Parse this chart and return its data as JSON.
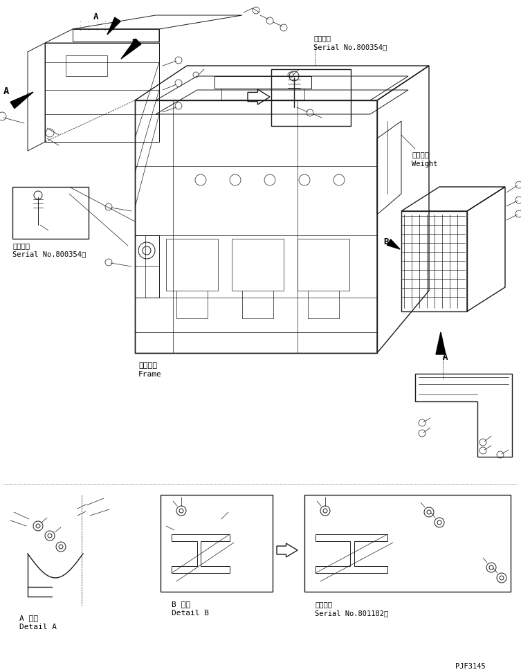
{
  "bg_color": "#ffffff",
  "line_color": "#1a1a1a",
  "fig_width": 7.53,
  "fig_height": 9.71,
  "dpi": 100,
  "labels": {
    "A_upper_left": "A",
    "B_upper_left": "B",
    "A_upper_top": "A",
    "A_right_side": "A",
    "B_right_side": "B",
    "serial_top_right_1": "適用号機",
    "serial_top_right_2": "Serial No.800354～",
    "weight_1": "ウェイト",
    "weight_2": "Weight",
    "frame_1": "フレーム",
    "frame_2": "Frame",
    "serial_left_box_1": "適用号機",
    "serial_left_box_2": "Serial No.800354～",
    "detail_a_1": "A 詳細",
    "detail_a_2": "Detail A",
    "detail_b_1": "B 詳細",
    "detail_b_2": "Detail B",
    "serial_bottom_right_1": "適用号機",
    "serial_bottom_right_2": "Serial No.801182～",
    "part_number": "PJF3145"
  }
}
